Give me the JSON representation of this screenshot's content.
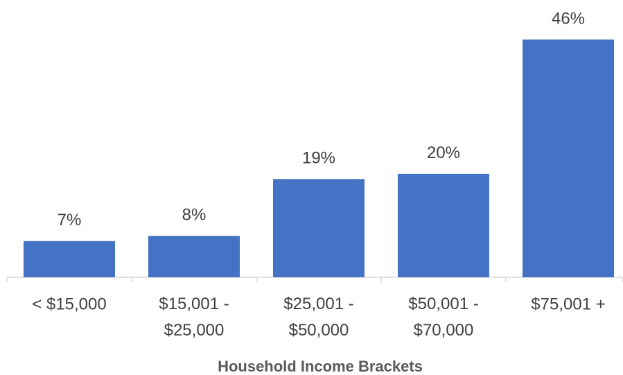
{
  "chart_data": {
    "type": "bar",
    "x_label": "Household Income Brackets",
    "categories": [
      "< $15,000",
      "$15,001 - $25,000",
      "$25,001 - $50,000",
      "$50,001 - $70,000",
      "$75,001 +"
    ],
    "values": [
      7,
      8,
      19,
      20,
      46
    ],
    "value_labels": [
      "7%",
      "8%",
      "19%",
      "20%",
      "46%"
    ],
    "color": "#4472c4"
  }
}
